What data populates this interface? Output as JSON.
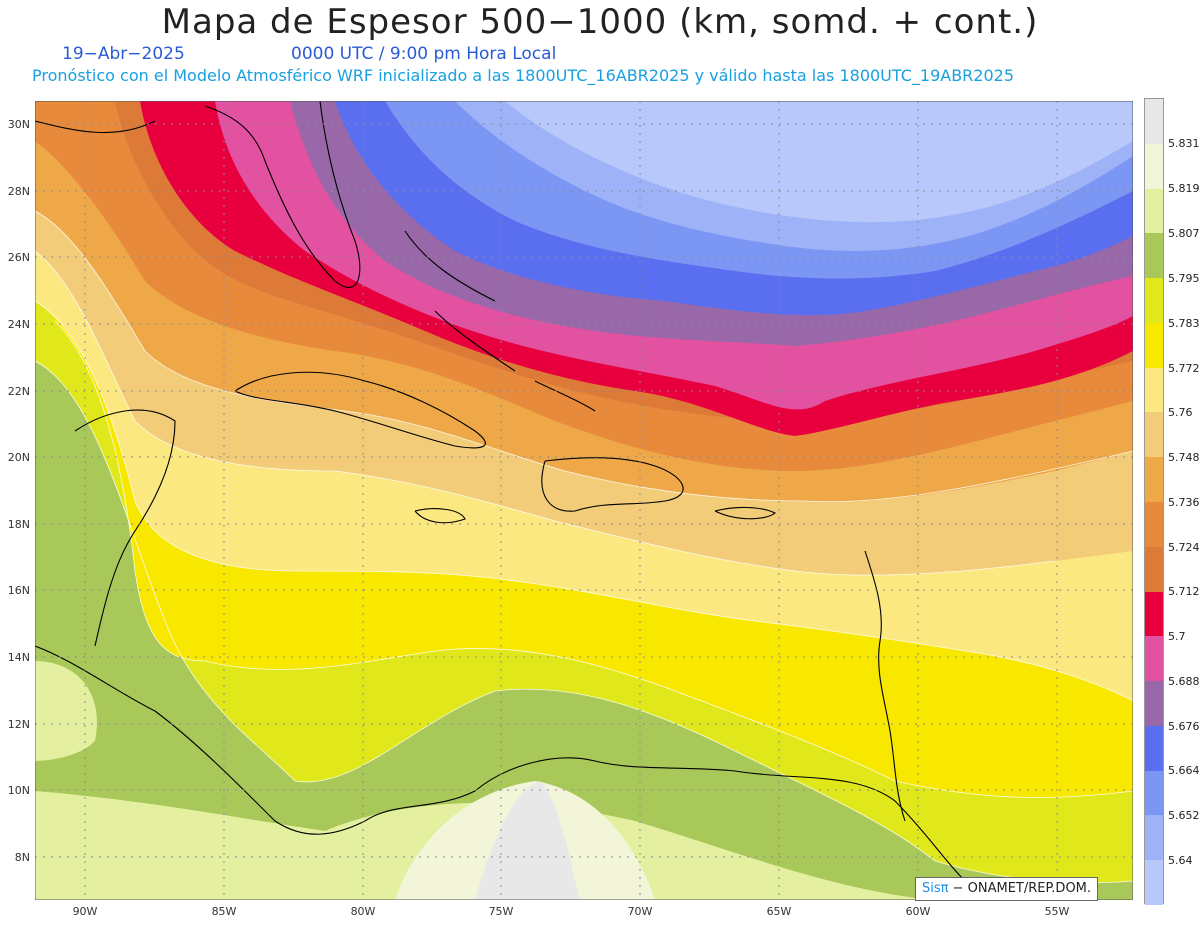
{
  "header": {
    "title": "Mapa de Espesor 500−1000 (km, somd. + cont.)",
    "date": "19−Abr−2025",
    "time": "0000 UTC / 9:00 pm Hora Local",
    "forecast": "Pronóstico con el Modelo Atmosférico WRF inicializado a las 1800UTC_16ABR2025 y válido hasta las  1800UTC_19ABR2025"
  },
  "axes": {
    "lat_labels": [
      "30N",
      "28N",
      "26N",
      "24N",
      "22N",
      "20N",
      "18N",
      "16N",
      "14N",
      "12N",
      "10N",
      "8N"
    ],
    "lon_labels": [
      "90W",
      "85W",
      "80W",
      "75W",
      "70W",
      "65W",
      "60W",
      "55W"
    ]
  },
  "colorbar": {
    "labels": [
      "5.831",
      "5.819",
      "5.807",
      "5.795",
      "5.783",
      "5.772",
      "5.76",
      "5.748",
      "5.736",
      "5.724",
      "5.712",
      "5.7",
      "5.688",
      "5.676",
      "5.664",
      "5.652",
      "5.64"
    ],
    "colors": [
      "#e8e8e8",
      "#f2f5d8",
      "#e4f0a0",
      "#a8c85a",
      "#e0e81c",
      "#f8e800",
      "#fbe880",
      "#f2cc78",
      "#efa848",
      "#e88a3c",
      "#dd7a38",
      "#e8003e",
      "#e352a0",
      "#9868a8",
      "#5a6ef0",
      "#7c96f4",
      "#9eb2f8",
      "#b8c8fa"
    ]
  },
  "credit": {
    "sis": "Sis",
    "pi": "π",
    "rest": "− ONAMET/REP.DOM."
  }
}
